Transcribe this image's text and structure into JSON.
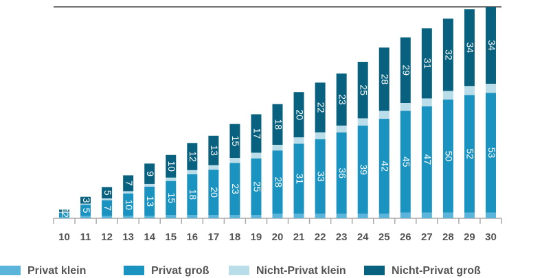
{
  "chart_data": {
    "type": "stacked_bar",
    "categories": [
      "10",
      "11",
      "12",
      "13",
      "14",
      "15",
      "16",
      "17",
      "18",
      "19",
      "20",
      "21",
      "22",
      "23",
      "24",
      "25",
      "26",
      "27",
      "28",
      "29",
      "30"
    ],
    "series": [
      {
        "name": "Privat klein",
        "color": "#5bb4d9",
        "values": [
          0.5,
          1,
          1,
          1,
          1,
          1.5,
          1.5,
          1.5,
          1.5,
          1.5,
          2,
          2,
          2,
          2,
          2,
          2,
          2.5,
          2.5,
          2.5,
          2.5,
          2.5
        ]
      },
      {
        "name": "Privat groß",
        "color": "#1a93c0",
        "values": [
          2,
          5,
          7,
          10,
          13,
          15,
          18,
          20,
          23,
          25,
          28,
          31,
          33,
          36,
          39,
          42,
          45,
          47,
          50,
          52,
          53
        ]
      },
      {
        "name": "Nicht-Privat klein",
        "color": "#b9dde9",
        "values": [
          0.3,
          0.5,
          0.8,
          1,
          1.2,
          1.5,
          1.8,
          2,
          2.2,
          2.5,
          2.5,
          2.8,
          3,
          3,
          3.2,
          3.5,
          3.5,
          3.5,
          3.8,
          4,
          4
        ]
      },
      {
        "name": "Nicht-Privat groß",
        "color": "#08617f",
        "values": [
          1,
          3,
          5,
          7,
          9,
          10,
          12,
          13,
          15,
          17,
          18,
          20,
          22,
          23,
          25,
          28,
          29,
          31,
          32,
          34,
          34
        ]
      }
    ],
    "labeled_series": [
      1,
      3
    ],
    "ylim": [
      0,
      93.5
    ]
  }
}
